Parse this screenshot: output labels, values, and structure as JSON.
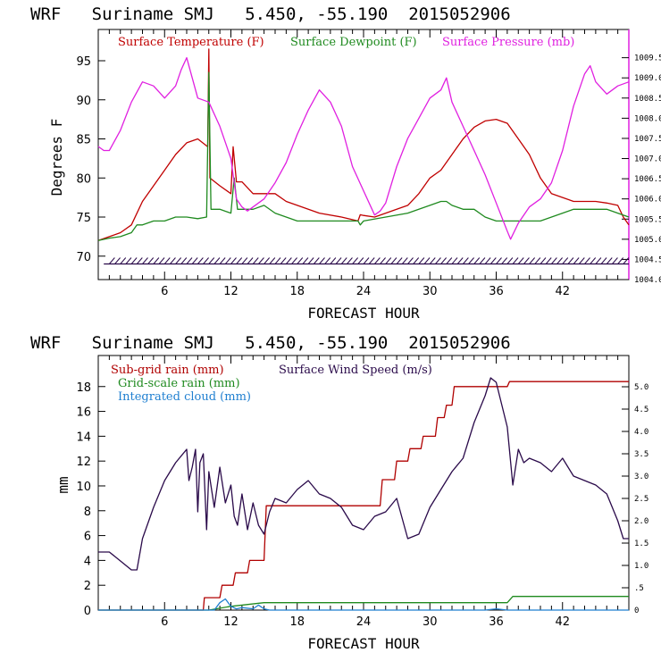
{
  "colors": {
    "temp": "#c00000",
    "dew": "#1f8a1f",
    "pres": "#e020e0",
    "wind": "#2a0a4a",
    "subgrid": "#b00000",
    "grid": "#1f8a1f",
    "cloud": "#1f7fd0"
  },
  "chart_data": [
    {
      "type": "line",
      "title": "WRF   Suriname SMJ   5.450, -55.190  2015052906",
      "xlabel": "FORECAST HOUR",
      "ylabel": "Degrees F",
      "xlim": [
        0,
        48
      ],
      "ylim": [
        67,
        99
      ],
      "y2lim": [
        1004,
        1010.2
      ],
      "xticks": [
        6,
        12,
        18,
        24,
        30,
        36,
        42
      ],
      "yticks": [
        70,
        75,
        80,
        85,
        90,
        95
      ],
      "y2ticks": [
        1004.0,
        1004.5,
        1005.0,
        1005.5,
        1006.0,
        1006.5,
        1007.0,
        1007.5,
        1008.0,
        1008.5,
        1009.0,
        1009.5
      ],
      "y2tick_labels": [
        "1004.0",
        "1004.5",
        "1005.0",
        "1005.5",
        "1006.0",
        "1006.5",
        "1007.0",
        "1007.5",
        "1008.0",
        "1008.5",
        "1009.0",
        "1009.5"
      ],
      "legend": [
        "Surface Temperature (F)",
        "Surface Dewpoint (F)",
        "Surface Pressure (mb)"
      ],
      "series": [
        {
          "name": "Surface Temperature (F)",
          "axis": "left",
          "x": [
            0,
            2,
            3,
            4,
            5,
            6,
            7,
            8,
            9,
            9.9,
            10,
            10.1,
            11,
            12,
            12.2,
            12.5,
            13,
            14,
            15,
            16,
            17,
            18,
            20,
            22,
            23.5,
            23.7,
            24,
            25,
            26,
            27,
            28,
            29,
            30,
            31,
            32,
            33,
            34,
            35,
            36,
            37,
            38,
            39,
            40,
            41,
            42,
            43,
            44,
            45,
            46,
            47,
            47.5,
            48
          ],
          "y": [
            72,
            73,
            74,
            77,
            79,
            81,
            83,
            84.5,
            85,
            84,
            96.5,
            80,
            79,
            78,
            84,
            79.5,
            79.5,
            78,
            78,
            78,
            77,
            76.5,
            75.5,
            75,
            74.5,
            75.3,
            75.2,
            75,
            75.5,
            76,
            76.5,
            78,
            80,
            81,
            83,
            85,
            86.5,
            87.3,
            87.5,
            87,
            85,
            83,
            80,
            78,
            77.5,
            77,
            77,
            77,
            76.8,
            76.5,
            75,
            74
          ]
        },
        {
          "name": "Surface Dewpoint (F)",
          "axis": "left",
          "x": [
            0,
            1,
            2,
            3,
            3.5,
            4,
            5,
            6,
            7,
            8,
            9,
            9.8,
            10,
            10.2,
            11,
            12,
            12.3,
            12.6,
            13,
            14,
            15,
            16,
            17,
            18,
            20,
            22,
            23.5,
            23.7,
            24,
            26,
            28,
            30,
            31,
            31.5,
            32,
            33,
            34,
            35,
            36,
            37,
            38,
            39,
            40,
            41,
            42,
            43,
            44,
            45,
            46,
            47,
            48
          ],
          "y": [
            72,
            72.3,
            72.5,
            73,
            74,
            74,
            74.5,
            74.5,
            75,
            75,
            74.8,
            75,
            93.5,
            76,
            76,
            75.5,
            80,
            76,
            76,
            76,
            76.5,
            75.5,
            75,
            74.5,
            74.5,
            74.5,
            74.5,
            74,
            74.5,
            75,
            75.5,
            76.5,
            77,
            77,
            76.5,
            76,
            76,
            75,
            74.5,
            74.5,
            74.5,
            74.5,
            74.5,
            75,
            75.5,
            76,
            76,
            76,
            76,
            75.5,
            75
          ]
        },
        {
          "name": "Surface Pressure (mb)",
          "axis": "right",
          "x": [
            0,
            0.5,
            1,
            2,
            3,
            4,
            5,
            6,
            7,
            7.5,
            8,
            8.5,
            9,
            10,
            11,
            12,
            12.5,
            13,
            13.5,
            14,
            15,
            16,
            17,
            18,
            19,
            20,
            21,
            22,
            23,
            24,
            25,
            25.5,
            26,
            27,
            28,
            29,
            30,
            31,
            31.5,
            32,
            33,
            34,
            35,
            36,
            37,
            37.3,
            38,
            39,
            40,
            41,
            42,
            43,
            44,
            44.5,
            45,
            46,
            47,
            48
          ],
          "y": [
            1007.3,
            1007.2,
            1007.2,
            1007.7,
            1008.4,
            1008.9,
            1008.8,
            1008.5,
            1008.8,
            1009.2,
            1009.5,
            1009.0,
            1008.5,
            1008.4,
            1007.8,
            1007.0,
            1006.0,
            1005.8,
            1005.7,
            1005.8,
            1006.0,
            1006.4,
            1006.9,
            1007.6,
            1008.2,
            1008.7,
            1008.4,
            1007.8,
            1006.8,
            1006.2,
            1005.6,
            1005.7,
            1005.9,
            1006.8,
            1007.5,
            1008.0,
            1008.5,
            1008.7,
            1009.0,
            1008.4,
            1007.8,
            1007.2,
            1006.6,
            1005.9,
            1005.2,
            1005.0,
            1005.4,
            1005.8,
            1006.0,
            1006.4,
            1007.2,
            1008.3,
            1009.1,
            1009.3,
            1008.9,
            1008.6,
            1008.8,
            1008.9
          ]
        }
      ],
      "wind_barbs_y": 69
    },
    {
      "type": "line",
      "title": "WRF   Suriname SMJ   5.450, -55.190  2015052906",
      "xlabel": "FORECAST HOUR",
      "ylabel": "mm",
      "xlim": [
        0,
        48
      ],
      "ylim": [
        0,
        20.5
      ],
      "y2lim": [
        0,
        5.7
      ],
      "xticks": [
        6,
        12,
        18,
        24,
        30,
        36,
        42
      ],
      "yticks": [
        0,
        2,
        4,
        6,
        8,
        10,
        12,
        14,
        16,
        18
      ],
      "y2ticks": [
        0,
        0.5,
        1,
        1.5,
        2,
        2.5,
        3,
        3.5,
        4,
        4.5,
        5
      ],
      "y2tick_labels": [
        "0",
        ".5",
        "1.0",
        "1.5",
        "2.0",
        "2.5",
        "3.0",
        "3.5",
        "4.0",
        "4.5",
        "5.0"
      ],
      "legend": [
        "Sub-grid rain (mm)",
        "Surface Wind Speed (m/s)",
        "Grid-scale rain (mm)",
        "Integrated cloud (mm)"
      ],
      "series": [
        {
          "name": "Sub-grid rain (mm)",
          "axis": "left",
          "x": [
            0,
            9.5,
            9.6,
            11,
            11.2,
            12.2,
            12.4,
            13.5,
            13.7,
            15,
            15.2,
            25.5,
            25.7,
            26.8,
            27,
            28,
            28.2,
            29.2,
            29.4,
            30.5,
            30.7,
            31.3,
            31.5,
            32,
            32.2,
            35,
            35.5,
            37,
            37.2,
            48
          ],
          "y": [
            0,
            0,
            1,
            1,
            2,
            2,
            3,
            3,
            4,
            4,
            8.4,
            8.4,
            10.5,
            10.5,
            12,
            12,
            13,
            13,
            14,
            14,
            15.5,
            15.5,
            16.5,
            16.5,
            18,
            18,
            18,
            18,
            18.4,
            18.4
          ]
        },
        {
          "name": "Grid-scale rain (mm)",
          "axis": "left",
          "x": [
            0,
            10,
            12,
            15,
            20,
            30,
            37,
            37.5,
            48
          ],
          "y": [
            0,
            0,
            0.3,
            0.6,
            0.6,
            0.6,
            0.6,
            1.1,
            1.1
          ]
        },
        {
          "name": "Integrated cloud (mm)",
          "axis": "left",
          "x": [
            0,
            10.5,
            11,
            11.5,
            12,
            12.5,
            13,
            14,
            14.5,
            15,
            15.5,
            16,
            20,
            28,
            35,
            36,
            37,
            48
          ],
          "y": [
            0,
            0,
            0.6,
            0.9,
            0.3,
            0.1,
            0.2,
            0.1,
            0.4,
            0.1,
            0,
            0,
            0,
            0,
            0,
            0.1,
            0,
            0
          ]
        },
        {
          "name": "Surface Wind Speed (m/s)",
          "axis": "right",
          "x": [
            0,
            1,
            2,
            3,
            3.5,
            4,
            5,
            6,
            7,
            8,
            8.2,
            8.5,
            8.8,
            9,
            9.2,
            9.5,
            9.8,
            10,
            10.5,
            11,
            11.5,
            12,
            12.3,
            12.6,
            13,
            13.5,
            14,
            14.5,
            15,
            15.5,
            16,
            17,
            18,
            19,
            20,
            21,
            22,
            23,
            24,
            25,
            26,
            27,
            28,
            29,
            30,
            31,
            32,
            33,
            34,
            35,
            35.5,
            36,
            36.5,
            37,
            37.5,
            38,
            38.5,
            39,
            40,
            41,
            42,
            43,
            44,
            45,
            46,
            47,
            47.5,
            48
          ],
          "y": [
            1.3,
            1.3,
            1.1,
            0.9,
            0.9,
            1.6,
            2.3,
            2.9,
            3.3,
            3.6,
            2.9,
            3.2,
            3.6,
            2.2,
            3.3,
            3.5,
            1.8,
            3.1,
            2.3,
            3.2,
            2.4,
            2.8,
            2.1,
            1.9,
            2.6,
            1.8,
            2.4,
            1.9,
            1.7,
            2.2,
            2.5,
            2.4,
            2.7,
            2.9,
            2.6,
            2.5,
            2.3,
            1.9,
            1.8,
            2.1,
            2.2,
            2.5,
            1.6,
            1.7,
            2.3,
            2.7,
            3.1,
            3.4,
            4.2,
            4.8,
            5.2,
            5.1,
            4.6,
            4.1,
            2.8,
            3.6,
            3.3,
            3.4,
            3.3,
            3.1,
            3.4,
            3.0,
            2.9,
            2.8,
            2.6,
            2.0,
            1.6,
            1.6
          ]
        }
      ]
    }
  ]
}
